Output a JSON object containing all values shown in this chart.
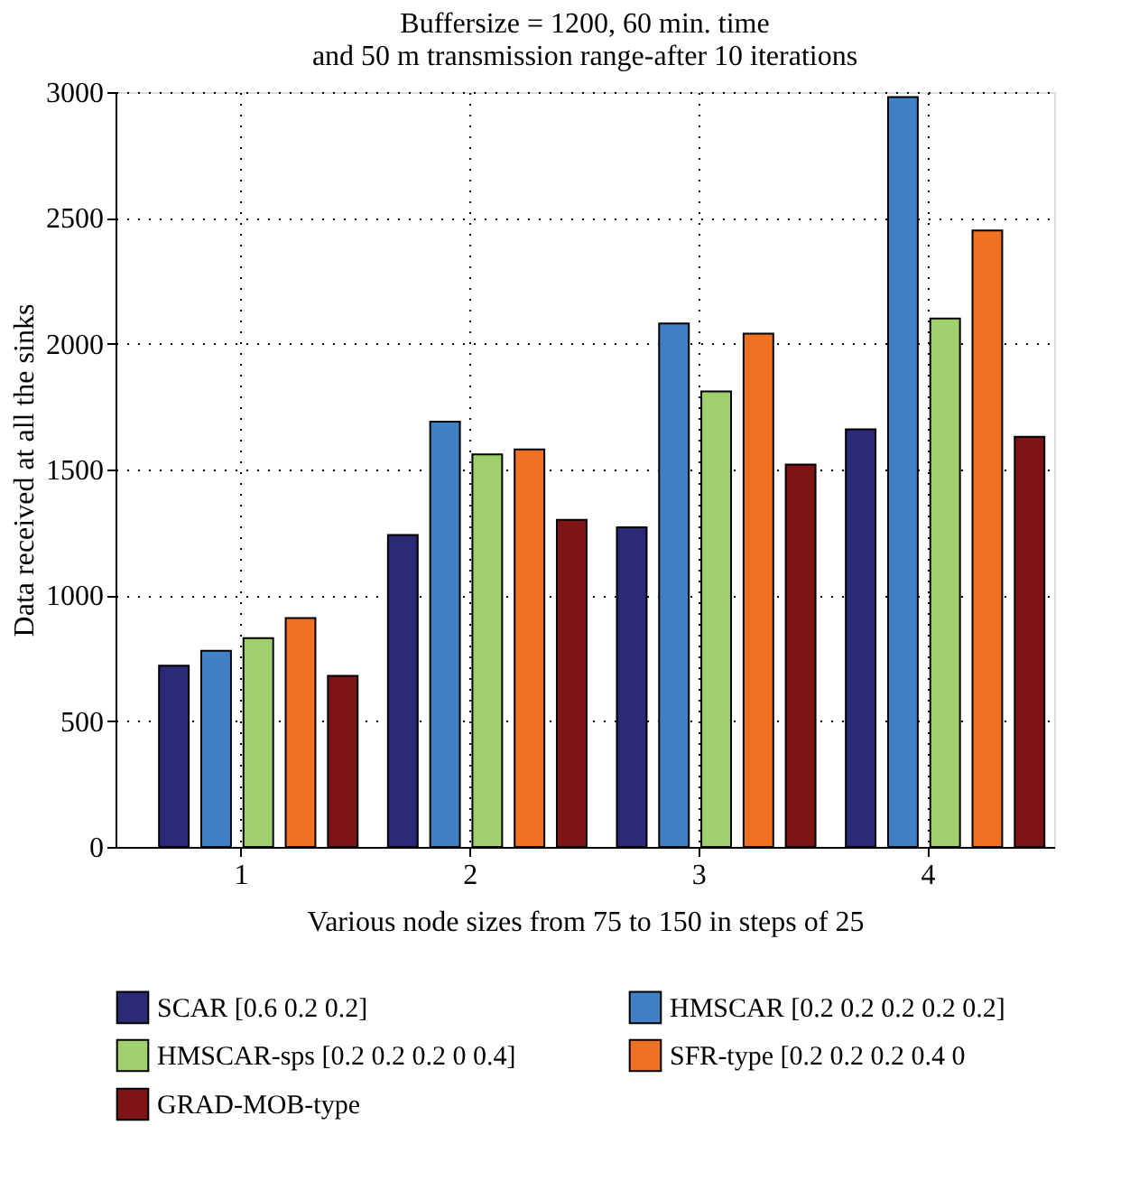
{
  "chart_data": {
    "type": "bar",
    "title": [
      "Buffersize = 1200, 60 min. time",
      "and 50 m transmission range-after 10 iterations"
    ],
    "xlabel": "Various node sizes from 75 to 150 in steps of 25",
    "ylabel": "Data received at all the sinks",
    "categories": [
      "1",
      "2",
      "3",
      "4"
    ],
    "series": [
      {
        "name": "SCAR [0.6 0.2 0.2]",
        "color": "#2b2a77",
        "values": [
          720,
          1240,
          1270,
          1660
        ]
      },
      {
        "name": "HMSCAR [0.2 0.2 0.2 0.2 0.2]",
        "color": "#4080c4",
        "values": [
          780,
          1690,
          2080,
          2980
        ]
      },
      {
        "name": "HMSCAR-sps [0.2 0.2 0.2 0 0.4]",
        "color": "#a0cf6e",
        "values": [
          830,
          1560,
          1810,
          2100
        ]
      },
      {
        "name": "SFR-type [0.2 0.2 0.2 0.4 0",
        "color": "#f07122",
        "values": [
          910,
          1580,
          2040,
          2450
        ]
      },
      {
        "name": "GRAD-MOB-type",
        "color": "#7d1416",
        "values": [
          680,
          1300,
          1520,
          1630
        ]
      }
    ],
    "ylim": [
      0,
      3000
    ],
    "yticks": [
      0,
      500,
      1000,
      1500,
      2000,
      2500,
      3000
    ],
    "grid": true,
    "legend": "bottom"
  }
}
